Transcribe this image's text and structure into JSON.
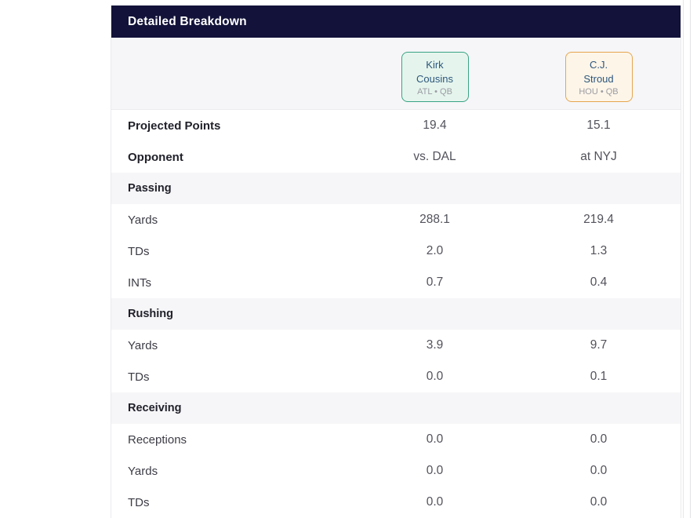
{
  "panel": {
    "title": "Detailed Breakdown"
  },
  "players": [
    {
      "name_lines": [
        "Kirk",
        "Cousins"
      ],
      "team_pos": "ATL • QB",
      "theme": {
        "bg": "#e5f5ed",
        "border": "#3aa385"
      }
    },
    {
      "name_lines": [
        "C.J.",
        "Stroud"
      ],
      "team_pos": "HOU • QB",
      "theme": {
        "bg": "#fdf5e8",
        "border": "#e6a54e"
      }
    }
  ],
  "rows": [
    {
      "type": "stat",
      "emphasis": true,
      "label": "Projected Points",
      "values": [
        "19.4",
        "15.1"
      ]
    },
    {
      "type": "stat",
      "emphasis": true,
      "label": "Opponent",
      "values": [
        "vs. DAL",
        "at NYJ"
      ]
    },
    {
      "type": "section",
      "label": "Passing"
    },
    {
      "type": "stat",
      "label": "Yards",
      "values": [
        "288.1",
        "219.4"
      ]
    },
    {
      "type": "stat",
      "label": "TDs",
      "values": [
        "2.0",
        "1.3"
      ]
    },
    {
      "type": "stat",
      "label": "INTs",
      "values": [
        "0.7",
        "0.4"
      ]
    },
    {
      "type": "section",
      "label": "Rushing"
    },
    {
      "type": "stat",
      "label": "Yards",
      "values": [
        "3.9",
        "9.7"
      ]
    },
    {
      "type": "stat",
      "label": "TDs",
      "values": [
        "0.0",
        "0.1"
      ]
    },
    {
      "type": "section",
      "label": "Receiving"
    },
    {
      "type": "stat",
      "label": "Receptions",
      "values": [
        "0.0",
        "0.0"
      ]
    },
    {
      "type": "stat",
      "label": "Yards",
      "values": [
        "0.0",
        "0.0"
      ]
    },
    {
      "type": "stat",
      "label": "TDs",
      "values": [
        "0.0",
        "0.0"
      ]
    }
  ],
  "colors": {
    "header_bg": "#12123a",
    "header_text": "#ffffff",
    "band_bg": "#f6f6f8",
    "row_bg": "#ffffff",
    "label_strong": "#21212b",
    "label_regular": "#3c3c46",
    "value_text": "#52525c",
    "player_name": "#2d567c",
    "player_sub": "#9b9ba3",
    "panel_border": "#ebebee"
  }
}
